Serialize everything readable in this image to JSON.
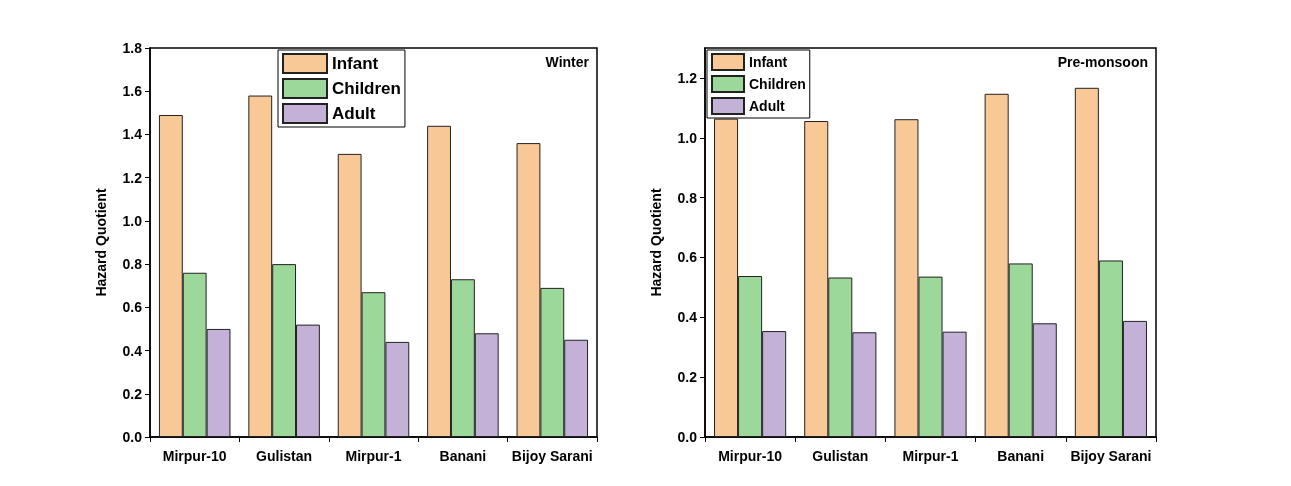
{
  "chart_data": [
    {
      "type": "bar",
      "title": "Winter",
      "ylabel": "Hazard Quotient",
      "categories": [
        "Mirpur-10",
        "Gulistan",
        "Mirpur-1",
        "Banani",
        "Bijoy Sarani"
      ],
      "series": [
        {
          "name": "Infant",
          "color": "#f9c897",
          "values": [
            1.49,
            1.58,
            1.31,
            1.44,
            1.36
          ]
        },
        {
          "name": "Children",
          "color": "#9dd89b",
          "values": [
            0.76,
            0.8,
            0.67,
            0.73,
            0.69
          ]
        },
        {
          "name": "Adult",
          "color": "#c3b1d8",
          "values": [
            0.5,
            0.52,
            0.44,
            0.48,
            0.45
          ]
        }
      ],
      "ylim": [
        0,
        1.8
      ],
      "yticks": [
        {
          "value": 0,
          "label": "0.0"
        },
        {
          "value": 0.2,
          "label": "0.2"
        },
        {
          "value": 0.4,
          "label": "0.4"
        },
        {
          "value": 0.6,
          "label": "0.6"
        },
        {
          "value": 0.8,
          "label": "0.8"
        },
        {
          "value": 1.0,
          "label": "1.0"
        },
        {
          "value": 1.2,
          "label": "1.2"
        },
        {
          "value": 1.4,
          "label": "1.4"
        },
        {
          "value": 1.6,
          "label": "1.6"
        },
        {
          "value": 1.8,
          "label": "1.8"
        }
      ],
      "grid": false,
      "legend": "top"
    },
    {
      "type": "bar",
      "title": "Pre-monsoon",
      "ylabel": "Hazard Quotient",
      "categories": [
        "Mirpur-10",
        "Gulistan",
        "Mirpur-1",
        "Banani",
        "Bijoy Sarani"
      ],
      "series": [
        {
          "name": "Infant",
          "color": "#f9c897",
          "values": [
            1.064,
            1.056,
            1.062,
            1.147,
            1.167
          ]
        },
        {
          "name": "Children",
          "color": "#9dd89b",
          "values": [
            0.538,
            0.533,
            0.536,
            0.58,
            0.59
          ]
        },
        {
          "name": "Adult",
          "color": "#c3b1d8",
          "values": [
            0.354,
            0.35,
            0.352,
            0.38,
            0.388
          ]
        }
      ],
      "ylim": [
        0,
        1.3
      ],
      "yticks": [
        {
          "value": 0,
          "label": "0.0"
        },
        {
          "value": 0.2,
          "label": "0.2"
        },
        {
          "value": 0.4,
          "label": "0.4"
        },
        {
          "value": 0.6,
          "label": "0.6"
        },
        {
          "value": 0.8,
          "label": "0.8"
        },
        {
          "value": 1.0,
          "label": "1.0"
        },
        {
          "value": 1.2,
          "label": "1.2"
        }
      ],
      "grid": false,
      "legend": "top left"
    }
  ]
}
